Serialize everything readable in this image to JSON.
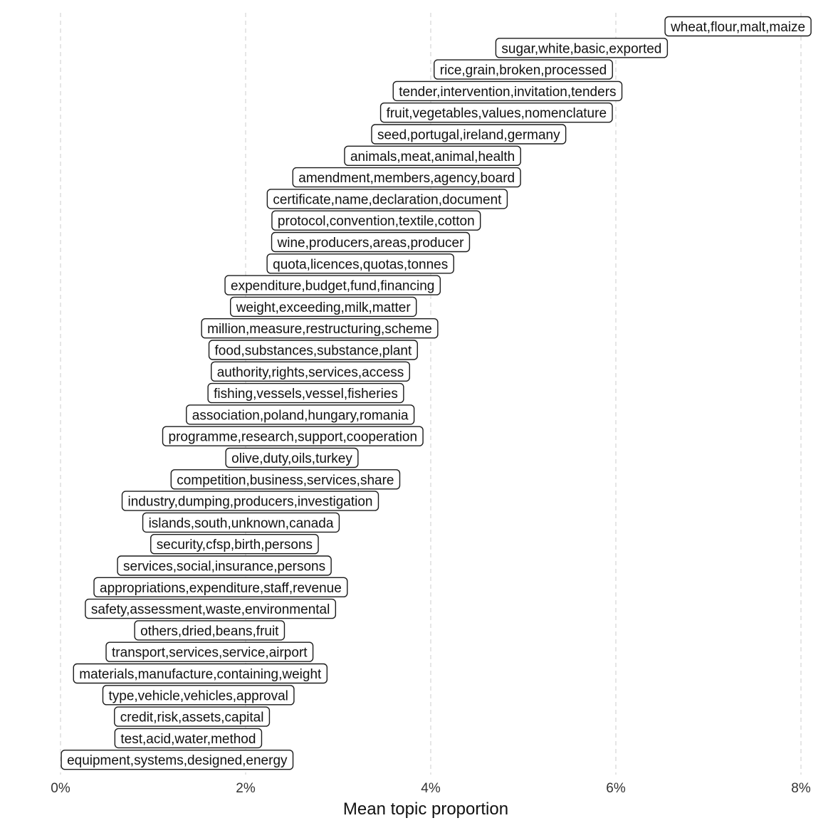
{
  "chart_data": {
    "type": "scatter",
    "xlabel": "Mean topic proportion",
    "ylabel": "",
    "title": "",
    "xlim": [
      -0.0005,
      0.0825
    ],
    "x_ticks": [
      {
        "value": 0,
        "label": "0%"
      },
      {
        "value": 0.02,
        "label": "2%"
      },
      {
        "value": 0.04,
        "label": "4%"
      },
      {
        "value": 0.06,
        "label": "6%"
      },
      {
        "value": 0.08,
        "label": "8%"
      }
    ],
    "grid": "vertical-dashed",
    "points": [
      {
        "label": "wheat,flour,malt,maize",
        "x": 0.0732
      },
      {
        "label": "sugar,white,basic,exported",
        "x": 0.0563
      },
      {
        "label": "rice,grain,broken,processed",
        "x": 0.05
      },
      {
        "label": "tender,intervention,invitation,tenders",
        "x": 0.0483
      },
      {
        "label": "fruit,vegetables,values,nomenclature",
        "x": 0.0471
      },
      {
        "label": "seed,portugal,ireland,germany",
        "x": 0.0441
      },
      {
        "label": "animals,meat,animal,health",
        "x": 0.0402
      },
      {
        "label": "amendment,members,agency,board",
        "x": 0.0374
      },
      {
        "label": "certificate,name,declaration,document",
        "x": 0.0353
      },
      {
        "label": "protocol,convention,textile,cotton",
        "x": 0.0341
      },
      {
        "label": "wine,producers,areas,producer",
        "x": 0.0335
      },
      {
        "label": "quota,licences,quotas,tonnes",
        "x": 0.0324
      },
      {
        "label": "expenditure,budget,fund,financing",
        "x": 0.0294
      },
      {
        "label": "weight,exceeding,milk,matter",
        "x": 0.0284
      },
      {
        "label": "million,measure,restructuring,scheme",
        "x": 0.028
      },
      {
        "label": "food,substances,substance,plant",
        "x": 0.0273
      },
      {
        "label": "authority,rights,services,access",
        "x": 0.027
      },
      {
        "label": "fishing,vessels,vessel,fisheries",
        "x": 0.0265
      },
      {
        "label": "association,poland,hungary,romania",
        "x": 0.0259
      },
      {
        "label": "programme,research,support,cooperation",
        "x": 0.0251
      },
      {
        "label": "olive,duty,oils,turkey",
        "x": 0.025
      },
      {
        "label": "competition,business,services,share",
        "x": 0.0243
      },
      {
        "label": "industry,dumping,producers,investigation",
        "x": 0.0205
      },
      {
        "label": "islands,south,unknown,canada",
        "x": 0.0195
      },
      {
        "label": "security,cfsp,birth,persons",
        "x": 0.0188
      },
      {
        "label": "services,social,insurance,persons",
        "x": 0.0177
      },
      {
        "label": "appropriations,expenditure,staff,revenue",
        "x": 0.0173
      },
      {
        "label": "safety,assessment,waste,environmental",
        "x": 0.0162
      },
      {
        "label": "others,dried,beans,fruit",
        "x": 0.0161
      },
      {
        "label": "transport,services,service,airport",
        "x": 0.0161
      },
      {
        "label": "materials,manufacture,containing,weight",
        "x": 0.0151
      },
      {
        "label": "type,vehicle,vehicles,approval",
        "x": 0.0149
      },
      {
        "label": "credit,risk,assets,capital",
        "x": 0.0142
      },
      {
        "label": "test,acid,water,method",
        "x": 0.0138
      },
      {
        "label": "equipment,systems,designed,energy",
        "x": 0.0126
      }
    ]
  }
}
